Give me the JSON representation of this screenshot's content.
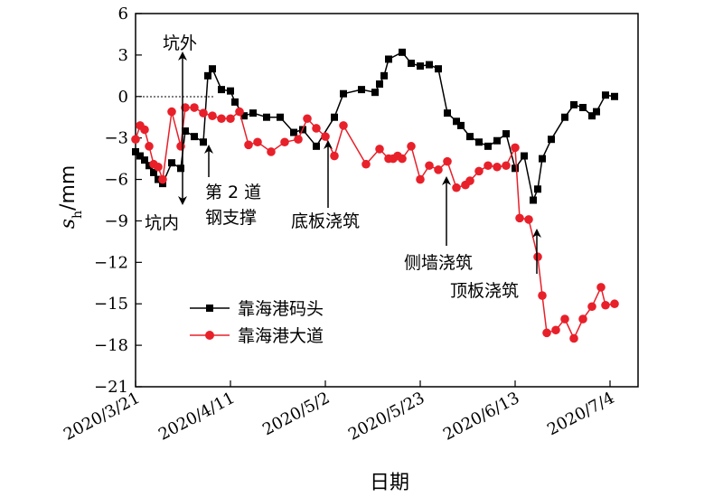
{
  "chart_data": {
    "type": "line",
    "xlabel": "日期",
    "ylabel_main": "s",
    "ylabel_sub": "h",
    "ylabel_unit": "/mm",
    "ylim": [
      -21,
      6
    ],
    "yticks": [
      6,
      3,
      0,
      -3,
      -6,
      -9,
      -12,
      -15,
      -18,
      -21
    ],
    "xlim": [
      "2020-03-21",
      "2020-07-08"
    ],
    "xticks": [
      {
        "date": "2020-03-21",
        "label": "2020/3/21"
      },
      {
        "date": "2020-04-11",
        "label": "2020/4/11"
      },
      {
        "date": "2020-05-02",
        "label": "2020/5/2"
      },
      {
        "date": "2020-05-23",
        "label": "2020/5/23"
      },
      {
        "date": "2020-06-13",
        "label": "2020/6/13"
      },
      {
        "date": "2020-07-04",
        "label": "2020/7/4"
      }
    ],
    "legend_position": "bottom-left",
    "series": [
      {
        "name": "靠海港码头",
        "color": "#000000",
        "marker": "square",
        "points": [
          [
            "2020-03-21",
            -4.0
          ],
          [
            "2020-03-22",
            -4.3
          ],
          [
            "2020-03-23",
            -4.6
          ],
          [
            "2020-03-24",
            -5.0
          ],
          [
            "2020-03-25",
            -5.5
          ],
          [
            "2020-03-26",
            -6.0
          ],
          [
            "2020-03-27",
            -6.3
          ],
          [
            "2020-03-29",
            -4.8
          ],
          [
            "2020-03-31",
            -5.2
          ],
          [
            "2020-04-01",
            -2.5
          ],
          [
            "2020-04-03",
            -2.9
          ],
          [
            "2020-04-05",
            -3.3
          ],
          [
            "2020-04-06",
            1.5
          ],
          [
            "2020-04-07",
            2.0
          ],
          [
            "2020-04-09",
            0.5
          ],
          [
            "2020-04-11",
            0.4
          ],
          [
            "2020-04-12",
            -0.4
          ],
          [
            "2020-04-14",
            -1.4
          ],
          [
            "2020-04-16",
            -1.2
          ],
          [
            "2020-04-19",
            -1.5
          ],
          [
            "2020-04-22",
            -1.5
          ],
          [
            "2020-04-25",
            -2.6
          ],
          [
            "2020-04-27",
            -2.4
          ],
          [
            "2020-04-30",
            -3.6
          ],
          [
            "2020-05-04",
            -1.5
          ],
          [
            "2020-05-06",
            0.2
          ],
          [
            "2020-05-10",
            0.5
          ],
          [
            "2020-05-13",
            0.3
          ],
          [
            "2020-05-14",
            0.9
          ],
          [
            "2020-05-15",
            1.5
          ],
          [
            "2020-05-16",
            2.7
          ],
          [
            "2020-05-19",
            3.2
          ],
          [
            "2020-05-21",
            2.4
          ],
          [
            "2020-05-23",
            2.2
          ],
          [
            "2020-05-25",
            2.3
          ],
          [
            "2020-05-27",
            2.0
          ],
          [
            "2020-05-29",
            -1.2
          ],
          [
            "2020-05-31",
            -1.8
          ],
          [
            "2020-06-01",
            -2.1
          ],
          [
            "2020-06-03",
            -2.9
          ],
          [
            "2020-06-05",
            -3.3
          ],
          [
            "2020-06-07",
            -3.6
          ],
          [
            "2020-06-09",
            -3.2
          ],
          [
            "2020-06-11",
            -2.7
          ],
          [
            "2020-06-13",
            -5.2
          ],
          [
            "2020-06-15",
            -4.3
          ],
          [
            "2020-06-17",
            -7.5
          ],
          [
            "2020-06-18",
            -6.7
          ],
          [
            "2020-06-19",
            -4.5
          ],
          [
            "2020-06-21",
            -3.1
          ],
          [
            "2020-06-24",
            -1.5
          ],
          [
            "2020-06-26",
            -0.6
          ],
          [
            "2020-06-28",
            -0.8
          ],
          [
            "2020-06-30",
            -1.4
          ],
          [
            "2020-07-01",
            -1.1
          ],
          [
            "2020-07-03",
            0.1
          ],
          [
            "2020-07-05",
            0.0
          ]
        ]
      },
      {
        "name": "靠海港大道",
        "color": "#e8202a",
        "marker": "circle",
        "points": [
          [
            "2020-03-21",
            -3.1
          ],
          [
            "2020-03-22",
            -2.1
          ],
          [
            "2020-03-23",
            -2.4
          ],
          [
            "2020-03-24",
            -3.6
          ],
          [
            "2020-03-25",
            -4.9
          ],
          [
            "2020-03-26",
            -5.1
          ],
          [
            "2020-03-27",
            -6.0
          ],
          [
            "2020-03-29",
            -1.1
          ],
          [
            "2020-03-31",
            -3.6
          ],
          [
            "2020-04-01",
            -0.8
          ],
          [
            "2020-04-03",
            -0.8
          ],
          [
            "2020-04-05",
            -1.2
          ],
          [
            "2020-04-07",
            -1.4
          ],
          [
            "2020-04-09",
            -1.6
          ],
          [
            "2020-04-11",
            -1.6
          ],
          [
            "2020-04-13",
            -1.1
          ],
          [
            "2020-04-15",
            -3.5
          ],
          [
            "2020-04-17",
            -3.3
          ],
          [
            "2020-04-20",
            -4.0
          ],
          [
            "2020-04-23",
            -3.3
          ],
          [
            "2020-04-26",
            -3.1
          ],
          [
            "2020-04-28",
            -1.6
          ],
          [
            "2020-04-30",
            -2.3
          ],
          [
            "2020-05-02",
            -2.9
          ],
          [
            "2020-05-04",
            -4.3
          ],
          [
            "2020-05-06",
            -2.1
          ],
          [
            "2020-05-11",
            -4.9
          ],
          [
            "2020-05-14",
            -3.8
          ],
          [
            "2020-05-16",
            -4.5
          ],
          [
            "2020-05-17",
            -4.5
          ],
          [
            "2020-05-18",
            -4.3
          ],
          [
            "2020-05-19",
            -4.5
          ],
          [
            "2020-05-21",
            -3.6
          ],
          [
            "2020-05-23",
            -6.0
          ],
          [
            "2020-05-25",
            -5.0
          ],
          [
            "2020-05-27",
            -5.3
          ],
          [
            "2020-05-29",
            -4.7
          ],
          [
            "2020-05-31",
            -6.6
          ],
          [
            "2020-06-02",
            -6.4
          ],
          [
            "2020-06-03",
            -6.1
          ],
          [
            "2020-06-05",
            -5.4
          ],
          [
            "2020-06-07",
            -5.0
          ],
          [
            "2020-06-09",
            -5.1
          ],
          [
            "2020-06-11",
            -5.0
          ],
          [
            "2020-06-13",
            -3.7
          ],
          [
            "2020-06-14",
            -8.8
          ],
          [
            "2020-06-16",
            -8.9
          ],
          [
            "2020-06-18",
            -11.6
          ],
          [
            "2020-06-19",
            -14.4
          ],
          [
            "2020-06-20",
            -17.1
          ],
          [
            "2020-06-22",
            -16.9
          ],
          [
            "2020-06-24",
            -16.1
          ],
          [
            "2020-06-26",
            -17.5
          ],
          [
            "2020-06-28",
            -16.1
          ],
          [
            "2020-06-30",
            -15.2
          ],
          [
            "2020-07-02",
            -13.8
          ],
          [
            "2020-07-03",
            -15.1
          ],
          [
            "2020-07-05",
            -15.0
          ]
        ]
      }
    ],
    "annotations": [
      {
        "id": "outside",
        "text": "坑外"
      },
      {
        "id": "inside",
        "text": "坑内"
      },
      {
        "id": "brace-1",
        "text": "第 2 道"
      },
      {
        "id": "brace-2",
        "text": "钢支撑"
      },
      {
        "id": "floor",
        "text": "底板浇筑"
      },
      {
        "id": "wall",
        "text": "侧墙浇筑"
      },
      {
        "id": "roof",
        "text": "顶板浇筑"
      }
    ]
  }
}
